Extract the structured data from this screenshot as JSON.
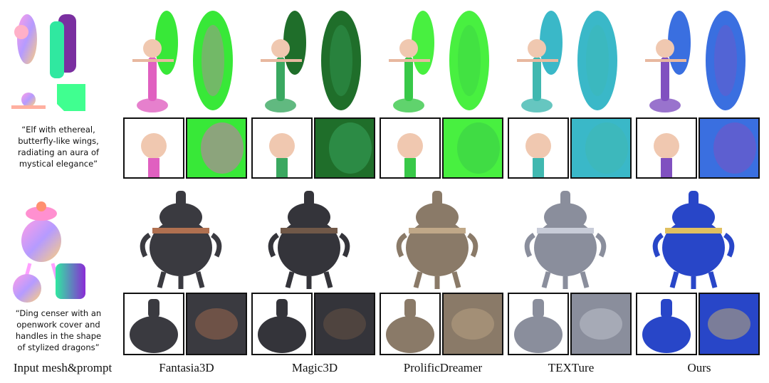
{
  "figure": {
    "prompts": [
      {
        "lines": [
          "“Elf with ethereal,",
          "butterfly-like wings,",
          "radiating an aura of",
          "mystical elegance”"
        ]
      },
      {
        "lines": [
          "“Ding censer with an",
          "openwork cover and",
          "handles in the shape",
          "of stylized dragons”"
        ]
      }
    ],
    "column_labels": [
      "Input mesh&prompt",
      "Fantasia3D",
      "Magic3D",
      "ProlificDreamer",
      "TEXTure",
      "Ours"
    ]
  }
}
